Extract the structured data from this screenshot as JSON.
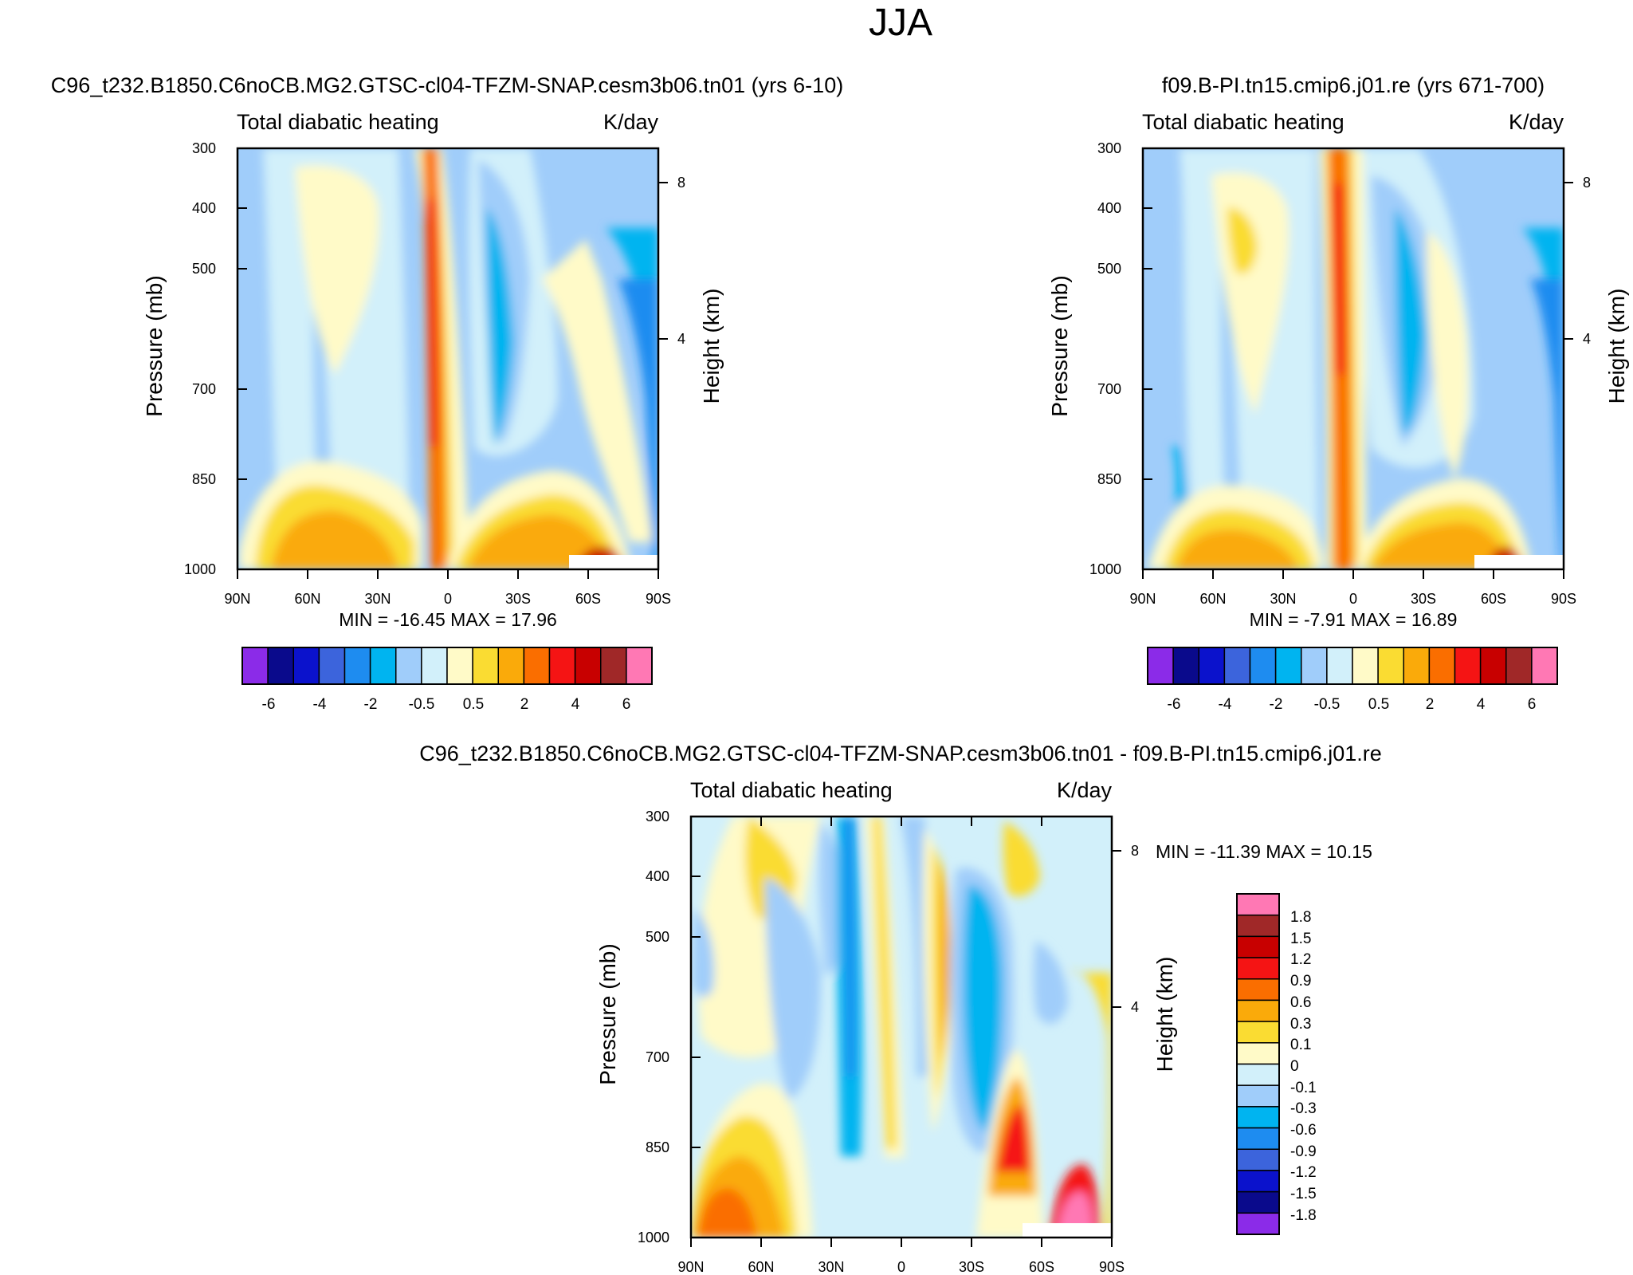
{
  "page": {
    "title": "JJA"
  },
  "palettes": {
    "abs": [
      "#8b2be8",
      "#0a0a8c",
      "#0b12cc",
      "#3c64dc",
      "#1e8cf0",
      "#00b4f0",
      "#a0cdfa",
      "#d2f0fa",
      "#fffac8",
      "#fadc32",
      "#faaa0a",
      "#fa6e00",
      "#f51414",
      "#c80000",
      "#a02828",
      "#ff78b4"
    ],
    "diff": [
      "#8b2be8",
      "#0a0a8c",
      "#0b12cc",
      "#3c64dc",
      "#1e8cf0",
      "#00b4f0",
      "#a0cdfa",
      "#d2f0fa",
      "#fffac8",
      "#fadc32",
      "#faaa0a",
      "#fa6e00",
      "#f51414",
      "#c80000",
      "#a02828",
      "#ff78b4"
    ]
  },
  "chart_data": [
    {
      "type": "heatmap",
      "case": "C96_t232.B1850.C6noCB.MG2.GTSC-cl04-TFZM-SNAP.cesm3b06.tn01 (yrs 6-10)",
      "left_title": "Total diabatic heating",
      "right_title": "K/day",
      "ylabel": "Pressure (mb)",
      "ylabel_right": "Height (km)",
      "x_ticks": [
        "90N",
        "60N",
        "30N",
        "0",
        "30S",
        "60S",
        "90S"
      ],
      "y_ticks": [
        "300",
        "400",
        "500",
        "700",
        "850",
        "1000"
      ],
      "y_ticks_right": [
        "8",
        "4"
      ],
      "xlim": [
        90,
        -90
      ],
      "ylim": [
        1000,
        300
      ],
      "stats": "MIN = -16.45  MAX =  17.96",
      "levels": [
        -6,
        -5,
        -4,
        -3,
        -2,
        -1,
        -0.5,
        0,
        0.5,
        1,
        2,
        3,
        4,
        5,
        6
      ],
      "colorbar_labels": [
        "-6",
        "-4",
        "-2",
        "-0.5",
        "0.5",
        "2",
        "4",
        "6"
      ]
    },
    {
      "type": "heatmap",
      "case": "f09.B-PI.tn15.cmip6.j01.re (yrs 671-700)",
      "left_title": "Total diabatic heating",
      "right_title": "K/day",
      "ylabel": "Pressure (mb)",
      "ylabel_right": "Height (km)",
      "x_ticks": [
        "90N",
        "60N",
        "30N",
        "0",
        "30S",
        "60S",
        "90S"
      ],
      "y_ticks": [
        "300",
        "400",
        "500",
        "700",
        "850",
        "1000"
      ],
      "y_ticks_right": [
        "8",
        "4"
      ],
      "xlim": [
        90,
        -90
      ],
      "ylim": [
        1000,
        300
      ],
      "stats": "MIN =  -7.91  MAX =  16.89",
      "levels": [
        -6,
        -5,
        -4,
        -3,
        -2,
        -1,
        -0.5,
        0,
        0.5,
        1,
        2,
        3,
        4,
        5,
        6
      ],
      "colorbar_labels": [
        "-6",
        "-4",
        "-2",
        "-0.5",
        "0.5",
        "2",
        "4",
        "6"
      ]
    },
    {
      "type": "heatmap",
      "case": "C96_t232.B1850.C6noCB.MG2.GTSC-cl04-TFZM-SNAP.cesm3b06.tn01 - f09.B-PI.tn15.cmip6.j01.re",
      "left_title": "Total diabatic heating",
      "right_title": "K/day",
      "ylabel": "Pressure (mb)",
      "ylabel_right": "Height (km)",
      "x_ticks": [
        "90N",
        "60N",
        "30N",
        "0",
        "30S",
        "60S",
        "90S"
      ],
      "y_ticks": [
        "300",
        "400",
        "500",
        "700",
        "850",
        "1000"
      ],
      "y_ticks_right": [
        "8",
        "4"
      ],
      "xlim": [
        90,
        -90
      ],
      "ylim": [
        1000,
        300
      ],
      "stats": "MIN = -11.39  MAX =  10.15",
      "levels": [
        -1.8,
        -1.5,
        -1.2,
        -0.9,
        -0.6,
        -0.3,
        -0.1,
        0,
        0.1,
        0.3,
        0.6,
        0.9,
        1.2,
        1.5,
        1.8
      ],
      "colorbar_labels": [
        "1.8",
        "1.5",
        "1.2",
        "0.9",
        "0.6",
        "0.3",
        "0.1",
        "0",
        "-0.1",
        "-0.3",
        "-0.6",
        "-0.9",
        "-1.2",
        "-1.5",
        "-1.8"
      ]
    }
  ]
}
